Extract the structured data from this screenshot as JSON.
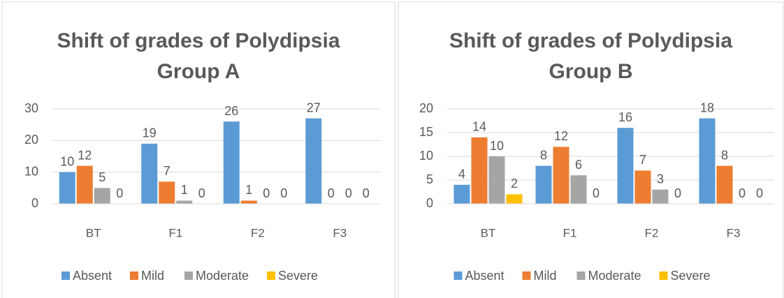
{
  "chart_data": [
    {
      "type": "bar",
      "title": [
        "Shift of grades of Polydipsia",
        "Group A"
      ],
      "categories": [
        "BT",
        "F1",
        "F2",
        "F3"
      ],
      "series": [
        {
          "name": "Absent",
          "color": "#5b9bd5",
          "values": [
            10,
            19,
            26,
            27
          ]
        },
        {
          "name": "Mild",
          "color": "#ed7d31",
          "values": [
            12,
            7,
            1,
            0
          ]
        },
        {
          "name": "Moderate",
          "color": "#a5a5a5",
          "values": [
            5,
            1,
            0,
            0
          ]
        },
        {
          "name": "Severe",
          "color": "#ffc000",
          "values": [
            0,
            0,
            0,
            0
          ]
        }
      ],
      "ylim": [
        0,
        30
      ],
      "yticks": [
        0,
        10,
        20,
        30
      ],
      "grid": true,
      "legend": "bottom"
    },
    {
      "type": "bar",
      "title": [
        "Shift of grades of Polydipsia",
        "Group B"
      ],
      "categories": [
        "BT",
        "F1",
        "F2",
        "F3"
      ],
      "series": [
        {
          "name": "Absent",
          "color": "#5b9bd5",
          "values": [
            4,
            8,
            16,
            18
          ]
        },
        {
          "name": "Mild",
          "color": "#ed7d31",
          "values": [
            14,
            12,
            7,
            8
          ]
        },
        {
          "name": "Moderate",
          "color": "#a5a5a5",
          "values": [
            10,
            6,
            3,
            0
          ]
        },
        {
          "name": "Severe",
          "color": "#ffc000",
          "values": [
            2,
            0,
            0,
            0
          ]
        }
      ],
      "ylim": [
        0,
        20
      ],
      "yticks": [
        0,
        5,
        10,
        15,
        20
      ],
      "grid": true,
      "legend": "bottom"
    }
  ]
}
